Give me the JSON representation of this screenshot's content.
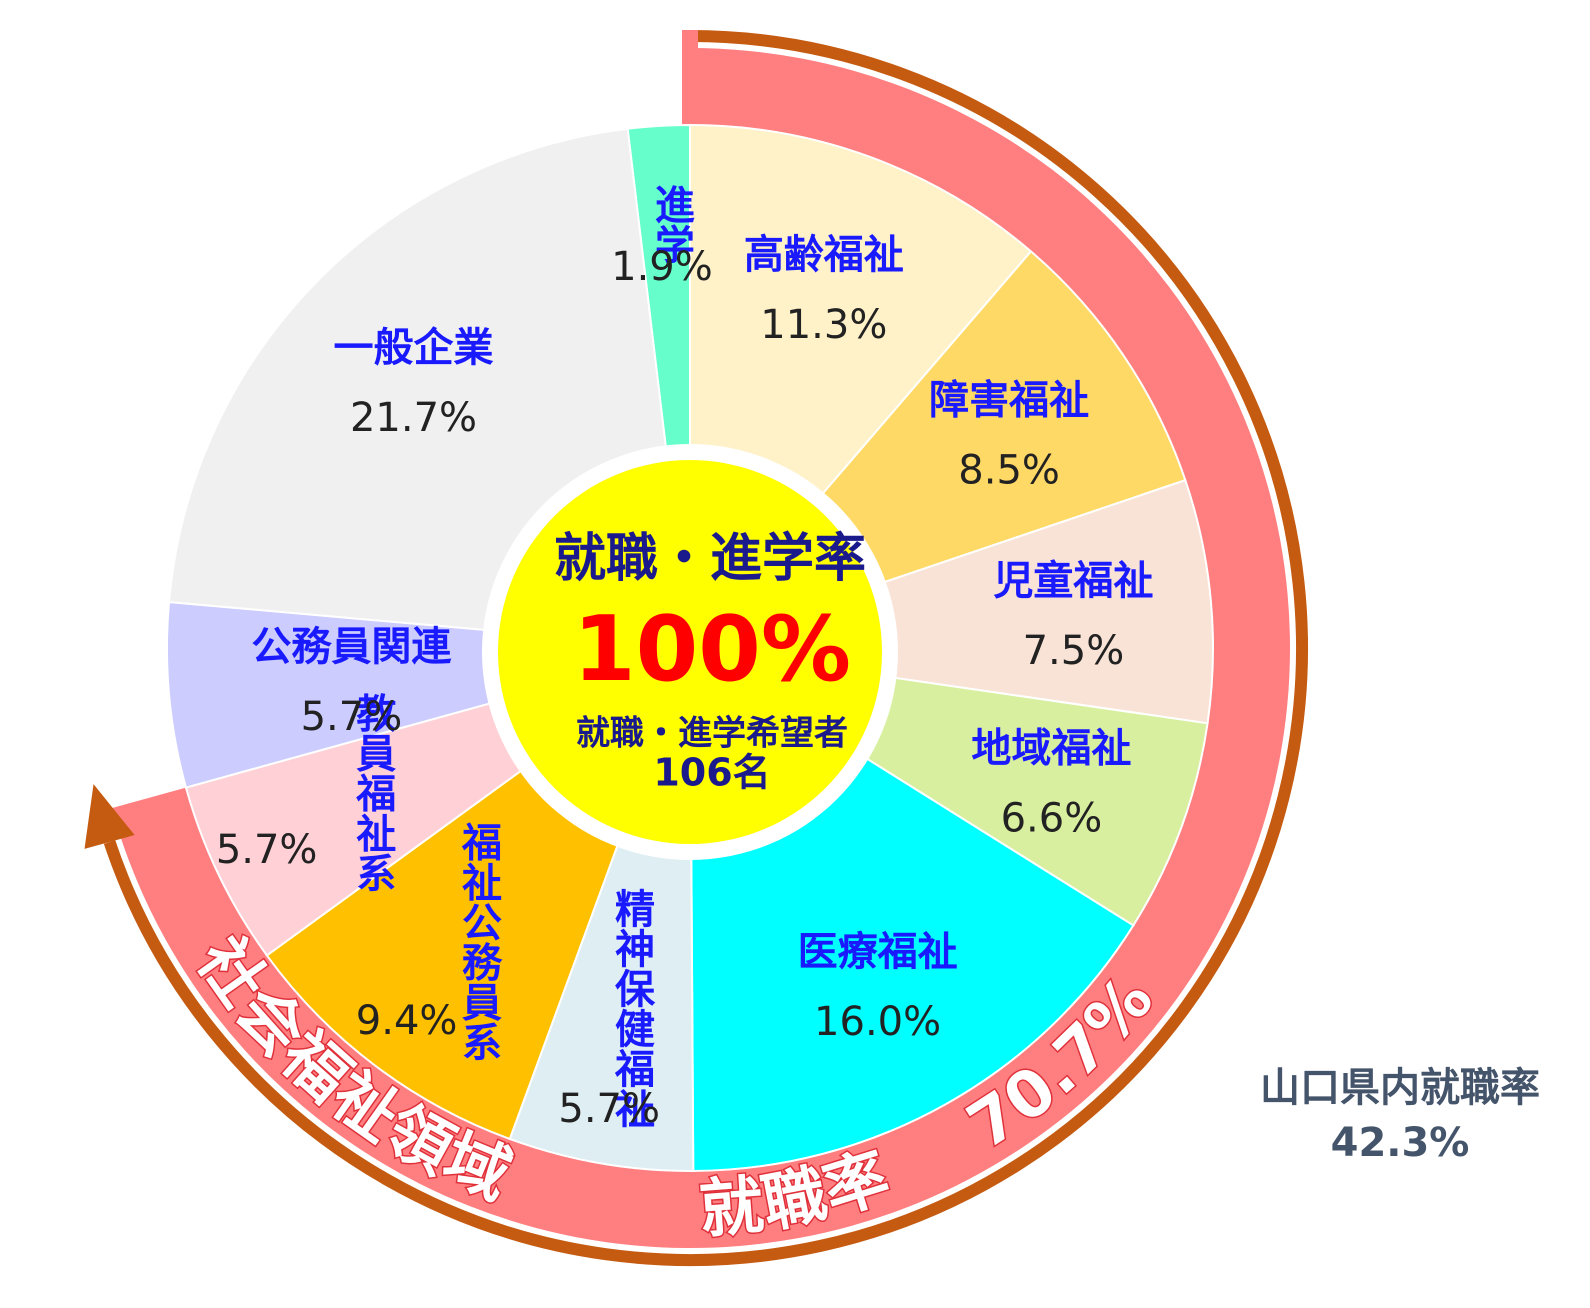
{
  "chart_data": {
    "type": "pie",
    "categories": [
      "高齢福祉",
      "障害福祉",
      "児童福祉",
      "地域福祉",
      "医療福祉",
      "精神保健福祉",
      "福祉公務員系",
      "教員福祉系",
      "公務員関連",
      "一般企業",
      "進学"
    ],
    "values": [
      11.3,
      8.5,
      7.5,
      6.6,
      16.0,
      5.7,
      9.4,
      5.7,
      5.7,
      21.7,
      1.9
    ],
    "value_labels": [
      "11.3%",
      "8.5%",
      "7.5%",
      "6.6%",
      "16.0%",
      "5.7%",
      "9.4%",
      "5.7%",
      "5.7%",
      "21.7%",
      "1.9%"
    ],
    "colors": [
      "#fff2c8",
      "#ffd966",
      "#f9e3d6",
      "#d9efa0",
      "#00ffff",
      "#deeef2",
      "#ffc000",
      "#ffd0d6",
      "#ccccff",
      "#f0f0f0",
      "#66ffcc"
    ],
    "center": {
      "title": "就職・進学率",
      "value": 100,
      "value_label": "100%",
      "note": "就職・進学希望者",
      "count": 106,
      "count_label": "106名"
    },
    "arc": {
      "label": "社会福祉領域",
      "rate_label": "就職率",
      "value": 70.7,
      "value_label": "70.7%",
      "color": "#ff7f80",
      "border_color": "#c55a11"
    },
    "prefecture": {
      "label": "山口県内就職率",
      "value": 42.3,
      "value_label": "42.3%"
    }
  }
}
